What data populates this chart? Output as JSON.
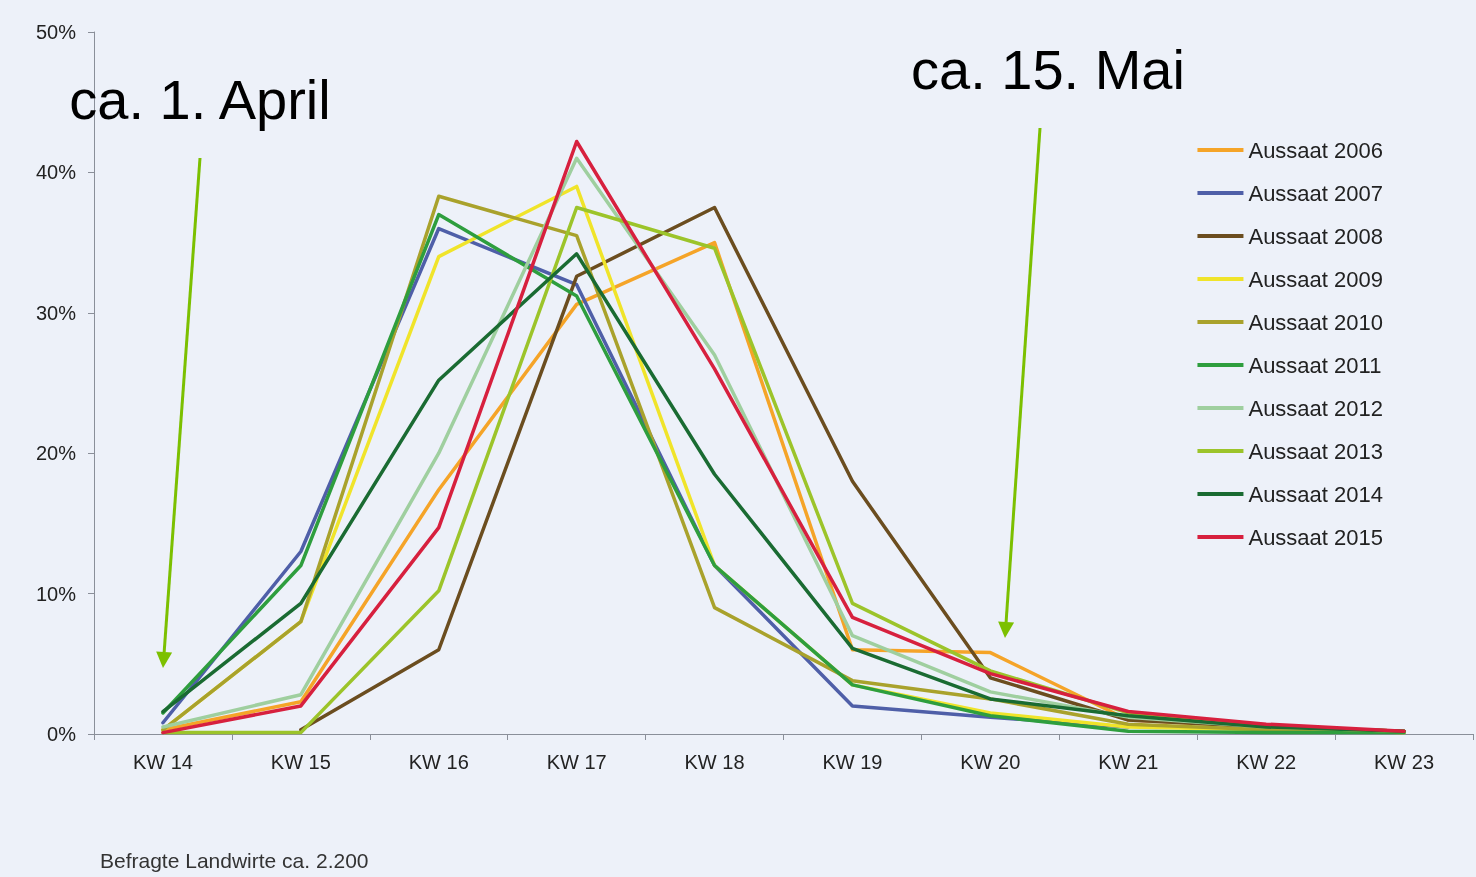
{
  "chart_data": {
    "type": "line",
    "categories": [
      "KW 14",
      "KW 15",
      "KW 16",
      "KW 17",
      "KW 18",
      "KW 19",
      "KW 20",
      "KW 21",
      "KW 22",
      "KW 23"
    ],
    "series": [
      {
        "name": "Aussaat 2006",
        "color": "#f5a428",
        "values": [
          0.3,
          2.3,
          17.4,
          30.6,
          35,
          6,
          5.8,
          1,
          0.5,
          0.2
        ]
      },
      {
        "name": "Aussaat 2007",
        "color": "#4f5fa8",
        "values": [
          0.8,
          13,
          36,
          32,
          12,
          2,
          1.2,
          0.5,
          null,
          null
        ]
      },
      {
        "name": "Aussaat 2008",
        "color": "#6b4d1f",
        "values": [
          null,
          0.3,
          6,
          32.6,
          37.5,
          18,
          4,
          1,
          0.5,
          0.2
        ]
      },
      {
        "name": "Aussaat 2009",
        "color": "#f0e42a",
        "values": [
          0.3,
          8,
          34,
          39,
          12,
          3.5,
          1.5,
          0.5,
          0.3,
          0.1
        ]
      },
      {
        "name": "Aussaat 2010",
        "color": "#a9a22c",
        "values": [
          0.3,
          8,
          38.3,
          35.5,
          9,
          3.8,
          2.5,
          0.7,
          0.3,
          0.1
        ]
      },
      {
        "name": "Aussaat 2011",
        "color": "#2e9e3e",
        "values": [
          1.5,
          12,
          37,
          31.2,
          12,
          3.5,
          1.3,
          0.2,
          0.1,
          0.1
        ]
      },
      {
        "name": "Aussaat 2012",
        "color": "#9fcf9f",
        "values": [
          0.5,
          2.8,
          20,
          41,
          27,
          7,
          3,
          1.2,
          0.5,
          0.2
        ]
      },
      {
        "name": "Aussaat 2013",
        "color": "#9cc42a",
        "values": [
          0.1,
          0.1,
          10.2,
          37.5,
          34.6,
          9.3,
          4.5,
          1.5,
          0.5,
          0.2
        ]
      },
      {
        "name": "Aussaat 2014",
        "color": "#1a6b32",
        "values": [
          1.6,
          9.3,
          25.2,
          34.2,
          18.5,
          6.1,
          2.5,
          1.3,
          0.5,
          0.2
        ]
      },
      {
        "name": "Aussaat 2015",
        "color": "#d7203e",
        "values": [
          0.1,
          2,
          14.7,
          42.2,
          26,
          8.3,
          4.3,
          1.6,
          0.7,
          0.2
        ]
      }
    ],
    "ylim": [
      0,
      50
    ],
    "yticks": [
      {
        "value": 0,
        "label": "0%"
      },
      {
        "value": 10,
        "label": "10%"
      },
      {
        "value": 20,
        "label": "20%"
      },
      {
        "value": 30,
        "label": "30%"
      },
      {
        "value": 40,
        "label": "40%"
      },
      {
        "value": 50,
        "label": "50%"
      }
    ],
    "grid": false,
    "legend": "right",
    "marker": "none",
    "line_style": "solid",
    "annotations": [
      "ca. 1. April",
      "ca. 15. Mai",
      "Befragte Landwirte ca. 2.200"
    ]
  }
}
